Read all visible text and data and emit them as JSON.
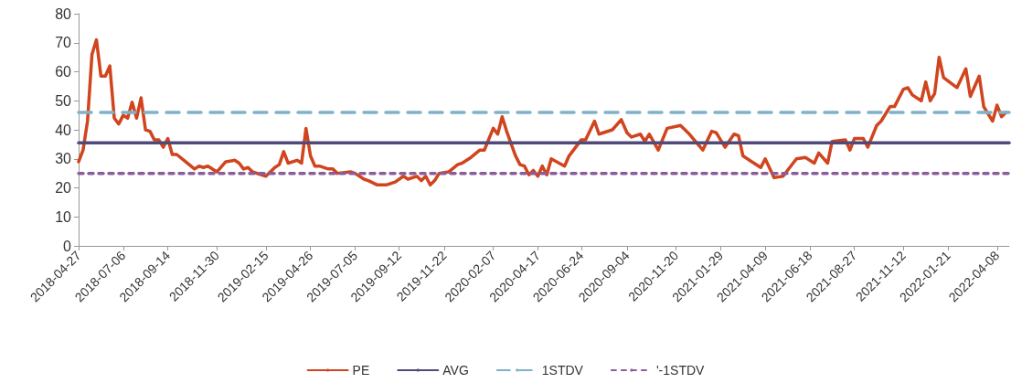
{
  "chart_data": {
    "type": "line",
    "x": [
      "2018-04-27",
      "2018-05-04",
      "2018-05-11",
      "2018-05-18",
      "2018-05-25",
      "2018-06-01",
      "2018-06-08",
      "2018-06-15",
      "2018-06-22",
      "2018-06-29",
      "2018-07-06",
      "2018-07-13",
      "2018-07-20",
      "2018-07-27",
      "2018-08-03",
      "2018-08-10",
      "2018-08-17",
      "2018-08-24",
      "2018-08-31",
      "2018-09-07",
      "2018-09-14",
      "2018-09-21",
      "2018-09-28",
      "2018-10-12",
      "2018-10-26",
      "2018-11-02",
      "2018-11-09",
      "2018-11-16",
      "2018-11-30",
      "2018-12-14",
      "2018-12-28",
      "2019-01-04",
      "2019-01-11",
      "2019-01-18",
      "2019-01-25",
      "2019-02-15",
      "2019-03-01",
      "2019-03-08",
      "2019-03-15",
      "2019-03-22",
      "2019-04-05",
      "2019-04-12",
      "2019-04-19",
      "2019-04-26",
      "2019-05-03",
      "2019-05-10",
      "2019-05-24",
      "2019-05-31",
      "2019-06-07",
      "2019-06-28",
      "2019-07-05",
      "2019-07-19",
      "2019-07-26",
      "2019-08-09",
      "2019-08-23",
      "2019-09-06",
      "2019-09-19",
      "2019-09-26",
      "2019-10-10",
      "2019-10-17",
      "2019-10-24",
      "2019-10-31",
      "2019-11-07",
      "2019-11-14",
      "2019-11-29",
      "2019-12-13",
      "2019-12-20",
      "2020-01-03",
      "2020-01-17",
      "2020-01-24",
      "2020-02-07",
      "2020-02-14",
      "2020-02-21",
      "2020-02-28",
      "2020-03-13",
      "2020-03-20",
      "2020-03-27",
      "2020-04-03",
      "2020-04-10",
      "2020-04-17",
      "2020-04-24",
      "2020-05-01",
      "2020-05-08",
      "2020-05-29",
      "2020-06-05",
      "2020-06-24",
      "2020-07-01",
      "2020-07-15",
      "2020-07-22",
      "2020-08-12",
      "2020-08-26",
      "2020-09-04",
      "2020-09-11",
      "2020-09-25",
      "2020-10-02",
      "2020-10-09",
      "2020-10-23",
      "2020-11-06",
      "2020-11-27",
      "2020-12-11",
      "2021-01-01",
      "2021-01-15",
      "2021-01-22",
      "2021-02-05",
      "2021-02-19",
      "2021-02-26",
      "2021-03-05",
      "2021-03-19",
      "2021-04-02",
      "2021-04-09",
      "2021-04-23",
      "2021-05-07",
      "2021-05-28",
      "2021-06-11",
      "2021-06-25",
      "2021-07-02",
      "2021-07-16",
      "2021-07-23",
      "2021-08-13",
      "2021-08-20",
      "2021-08-27",
      "2021-09-10",
      "2021-09-17",
      "2021-10-01",
      "2021-10-08",
      "2021-10-22",
      "2021-10-29",
      "2021-11-12",
      "2021-11-19",
      "2021-11-26",
      "2021-12-10",
      "2021-12-17",
      "2021-12-24",
      "2021-12-31",
      "2022-01-07",
      "2022-01-14",
      "2022-02-04",
      "2022-02-18",
      "2022-02-25",
      "2022-03-11",
      "2022-03-18",
      "2022-04-01",
      "2022-04-08",
      "2022-04-15",
      "2022-04-22"
    ],
    "series": [
      {
        "name": "PE",
        "color": "#d0441e",
        "values": [
          29,
          33,
          43,
          66,
          71,
          58.5,
          58.5,
          62,
          44,
          42,
          45,
          44,
          49.5,
          44,
          51,
          40,
          39.5,
          36.5,
          36.5,
          34,
          37,
          31.5,
          31.5,
          29,
          26.5,
          27.5,
          27,
          27.5,
          25.5,
          29,
          29.5,
          28.5,
          26.5,
          27,
          25.5,
          24,
          27,
          28,
          32.5,
          28.5,
          29.5,
          28.5,
          40.5,
          31,
          27.5,
          27.5,
          26.5,
          26.5,
          25,
          25.5,
          25,
          23,
          22.5,
          21,
          21,
          22,
          24,
          23,
          24,
          22.5,
          24,
          21,
          22.5,
          25,
          25.5,
          28,
          28.5,
          30.5,
          33,
          33,
          40.5,
          38.5,
          44.5,
          39.5,
          31,
          28,
          27.5,
          24.5,
          26,
          24,
          27.5,
          24.5,
          30,
          27.5,
          31,
          36.5,
          36.5,
          43,
          38.5,
          40,
          43.5,
          39,
          37.5,
          38.5,
          36,
          38.5,
          33,
          40.5,
          41.5,
          38.5,
          33,
          39.5,
          39,
          34,
          38.5,
          38,
          31,
          29,
          27,
          30,
          23.5,
          24,
          30,
          30.5,
          28.5,
          32,
          28.5,
          36,
          36.5,
          33,
          37,
          37,
          34,
          41.5,
          43,
          48,
          48,
          54,
          54.5,
          52,
          50,
          56.5,
          50,
          52.5,
          65,
          58,
          54.5,
          61,
          51.5,
          58.5,
          48,
          43,
          48.5,
          44.5,
          46
        ]
      }
    ],
    "ref_lines": [
      {
        "axis": "y",
        "value": 35.5,
        "label": "AVG",
        "color": "#514a78",
        "line_style": "solid"
      },
      {
        "axis": "y",
        "value": 46,
        "label": "1STDV",
        "color": "#80b1c8",
        "line_style": "dashed"
      },
      {
        "axis": "y",
        "value": 25,
        "label": "'-1STDV",
        "color": "#8a5d9a",
        "line_style": "dotted"
      }
    ],
    "xlim": [
      "2018-04-27",
      "2022-04-27"
    ],
    "xticks": [
      "2018-04-27",
      "2018-07-06",
      "2018-09-14",
      "2018-11-30",
      "2019-02-15",
      "2019-04-26",
      "2019-07-05",
      "2019-09-12",
      "2019-11-22",
      "2020-02-07",
      "2020-04-17",
      "2020-06-24",
      "2020-09-04",
      "2020-11-20",
      "2021-01-29",
      "2021-04-09",
      "2021-06-18",
      "2021-08-27",
      "2021-11-12",
      "2022-01-21",
      "2022-04-08"
    ],
    "ylim": [
      0,
      80
    ],
    "yticks": [
      0,
      10,
      20,
      30,
      40,
      50,
      60,
      70,
      80
    ],
    "grid": false,
    "legend": "bottom",
    "marker": "none",
    "line_style": "solid"
  }
}
